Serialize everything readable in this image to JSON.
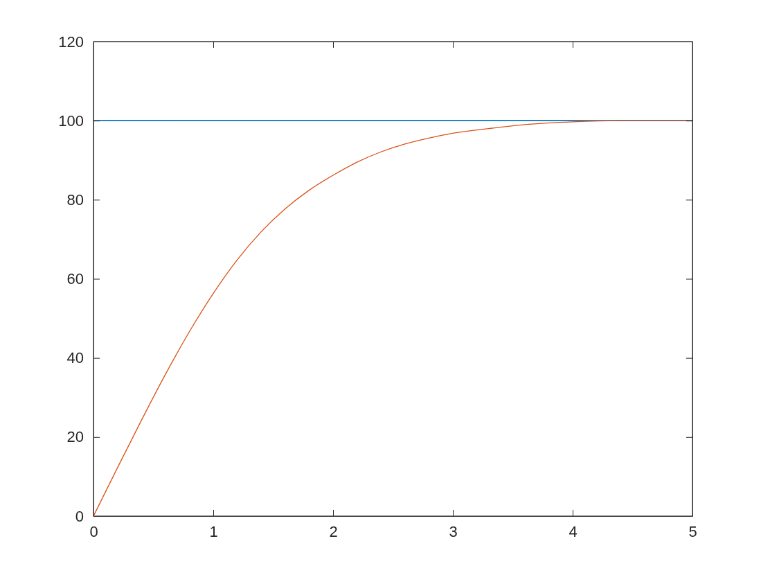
{
  "chart_data": {
    "type": "line",
    "xlim": [
      0,
      5
    ],
    "xticks": [
      0,
      1,
      2,
      3,
      4,
      5
    ],
    "ylim": [
      0,
      120
    ],
    "yticks": [
      0,
      20,
      40,
      60,
      80,
      100,
      120
    ],
    "series": [
      {
        "color": "#0072bd",
        "x": [
          0,
          5
        ],
        "values": [
          100,
          100
        ]
      },
      {
        "color": "#d95319",
        "x": [
          0,
          0.2,
          0.4,
          0.6,
          0.8,
          1.0,
          1.2,
          1.4,
          1.6,
          1.8,
          2.0,
          2.2,
          2.4,
          2.6,
          2.8,
          3.0,
          3.3,
          3.6,
          4.0,
          4.4,
          5.0
        ],
        "values": [
          0,
          12.2,
          24.2,
          35.8,
          46.6,
          56.3,
          64.8,
          71.9,
          77.7,
          82.4,
          86.2,
          89.5,
          92.1,
          94.1,
          95.6,
          96.8,
          98,
          99,
          99.7,
          100,
          100
        ]
      }
    ]
  }
}
